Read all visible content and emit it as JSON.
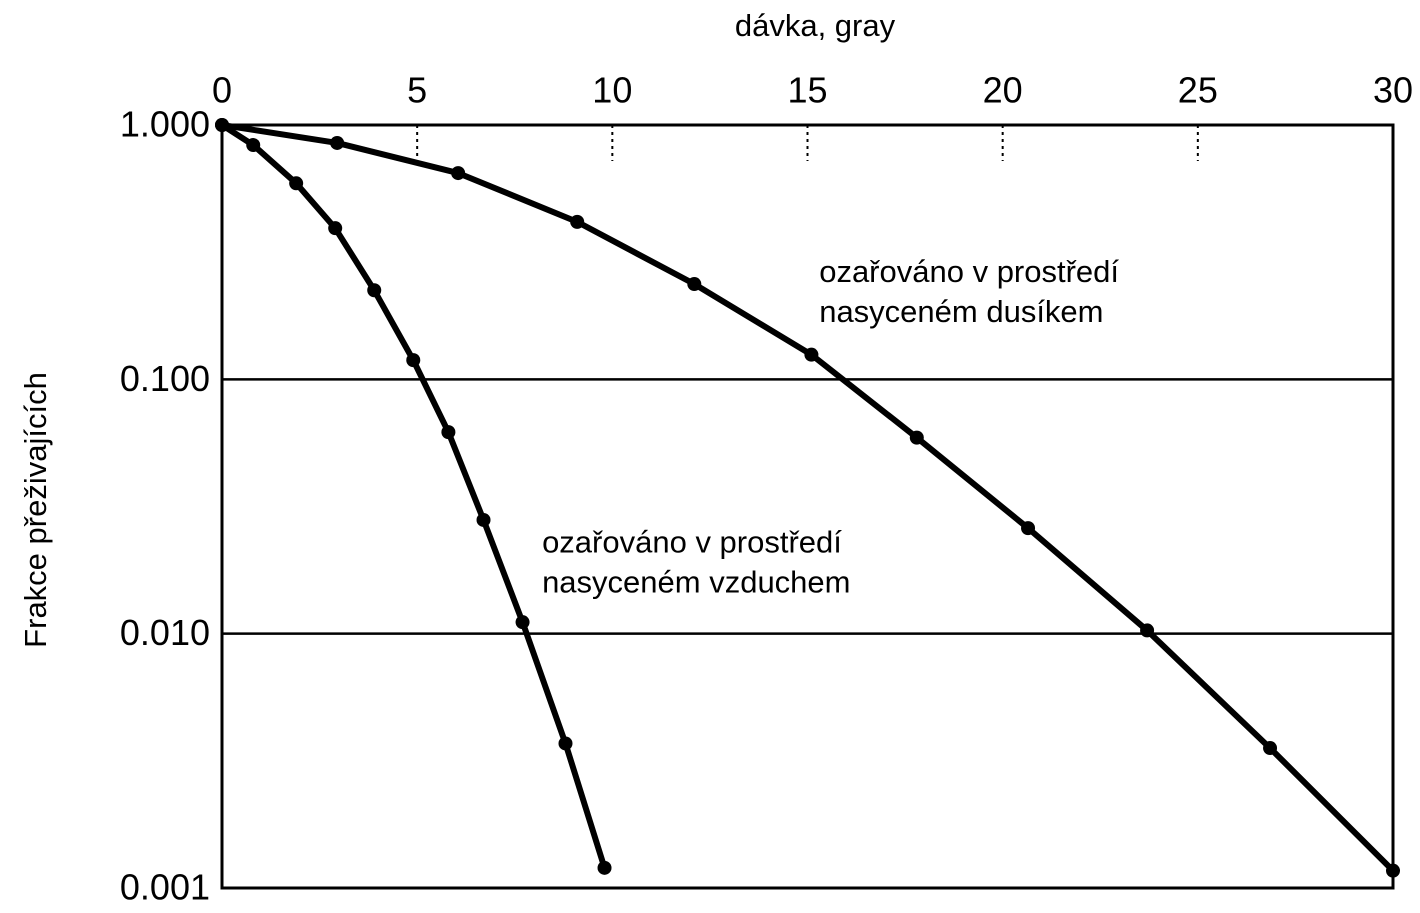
{
  "chart_data": {
    "type": "line",
    "xlabel": "dávka, gray",
    "ylabel": "Frakce přeživajících",
    "xaxis_position": "top",
    "yscale": "log",
    "xlim": [
      0,
      30
    ],
    "xticks": [
      0,
      5,
      10,
      15,
      20,
      25,
      30
    ],
    "ylim": [
      0.001,
      1
    ],
    "yticks": [
      {
        "value": 1,
        "label": "1.000"
      },
      {
        "value": 0.1,
        "label": "0.100"
      },
      {
        "value": 0.01,
        "label": "0.010"
      },
      {
        "value": 0.001,
        "label": "0.001"
      }
    ],
    "grid": true,
    "series": [
      {
        "color": "#000000",
        "x": [
          0,
          0.8,
          1.9,
          2.9,
          3.9,
          4.9,
          5.8,
          6.7,
          7.7,
          8.8,
          9.8
        ],
        "values": [
          1,
          0.834,
          0.59,
          0.393,
          0.224,
          0.119,
          0.062,
          0.028,
          0.0111,
          0.0037,
          0.0012
        ]
      },
      {
        "color": "#000000",
        "x": [
          0,
          2.95,
          6.05,
          9.1,
          12.1,
          15.1,
          17.8,
          20.65,
          23.7,
          26.85,
          30
        ],
        "values": [
          1,
          0.85,
          0.647,
          0.416,
          0.237,
          0.125,
          0.059,
          0.026,
          0.0103,
          0.00355,
          0.00117
        ]
      }
    ],
    "annotations": [
      {
        "lines": [
          "ozařováno v prostředí",
          "nasyceném dusíkem"
        ],
        "x": 15.3,
        "y": 0.26
      },
      {
        "lines": [
          "ozařováno v prostředí",
          "nasyceném vzduchem"
        ],
        "x": 8.2,
        "y": 0.0225
      }
    ]
  }
}
